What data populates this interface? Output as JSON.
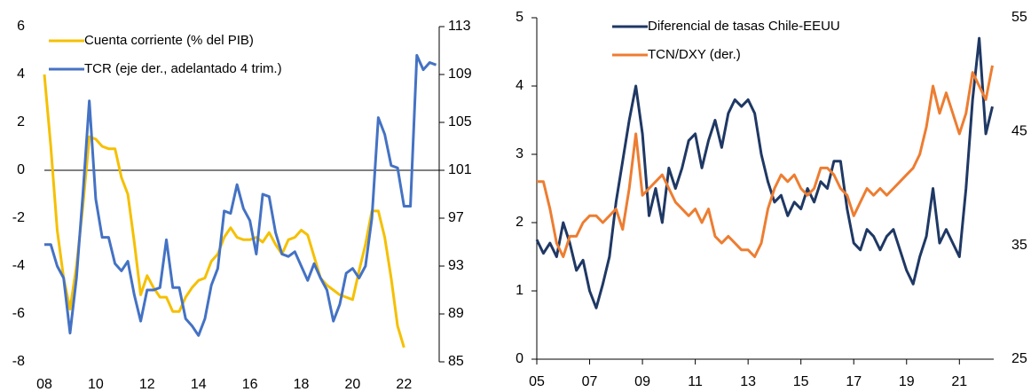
{
  "chart_data": [
    {
      "type": "line",
      "xlim": [
        8,
        23.37
      ],
      "xticks": [
        {
          "value": 8,
          "label": "08"
        },
        {
          "value": 10,
          "label": "10"
        },
        {
          "value": 12,
          "label": "12"
        },
        {
          "value": 14,
          "label": "14"
        },
        {
          "value": 16,
          "label": "16"
        },
        {
          "value": 18,
          "label": "18"
        },
        {
          "value": 20,
          "label": "20"
        },
        {
          "value": 22,
          "label": "22"
        }
      ],
      "ylim": [
        -8,
        6
      ],
      "yticks": [
        -8,
        -6,
        -4,
        -2,
        0,
        2,
        4,
        6
      ],
      "y2lim": [
        85,
        113
      ],
      "y2ticks": [
        85,
        89,
        93,
        97,
        101,
        105,
        109,
        113
      ],
      "series": [
        {
          "name": "Cuenta corriente (% del PIB)",
          "color": "#f5c000",
          "axis": "y",
          "x": [
            8,
            8.25,
            8.5,
            8.75,
            9,
            9.25,
            9.5,
            9.75,
            10,
            10.25,
            10.5,
            10.75,
            11,
            11.25,
            11.5,
            11.75,
            12,
            12.25,
            12.5,
            12.75,
            13,
            13.25,
            13.5,
            13.75,
            14,
            14.25,
            14.5,
            14.75,
            15,
            15.25,
            15.5,
            15.75,
            16,
            16.25,
            16.5,
            16.75,
            17,
            17.25,
            17.5,
            17.75,
            18,
            18.25,
            18.5,
            18.75,
            19,
            19.25,
            19.5,
            19.75,
            20,
            20.25,
            20.5,
            20.75,
            21,
            21.25,
            21.5,
            21.75,
            22
          ],
          "values": [
            4,
            1,
            -2.5,
            -4.5,
            -5.8,
            -4,
            -1.5,
            1.4,
            1.3,
            1.0,
            0.9,
            0.9,
            -0.3,
            -1,
            -3,
            -5.2,
            -4.4,
            -4.9,
            -5.3,
            -5.3,
            -5.9,
            -5.9,
            -5.3,
            -4.9,
            -4.6,
            -4.5,
            -3.8,
            -3.5,
            -2.8,
            -2.4,
            -2.8,
            -2.9,
            -2.9,
            -2.8,
            -3,
            -2.6,
            -3.1,
            -3.5,
            -2.9,
            -2.8,
            -2.5,
            -2.7,
            -3.6,
            -4.5,
            -4.8,
            -5.0,
            -5.2,
            -5.3,
            -5.4,
            -4.2,
            -3.1,
            -1.7,
            -1.7,
            -2.8,
            -4.5,
            -6.5,
            -7.4
          ]
        },
        {
          "name": "TCR (eje der., adelantado 4 trim.)",
          "color": "#4472c4",
          "axis": "y2",
          "x": [
            8,
            8.25,
            8.5,
            8.75,
            9,
            9.25,
            9.5,
            9.75,
            10,
            10.25,
            10.5,
            10.75,
            11,
            11.25,
            11.5,
            11.75,
            12,
            12.25,
            12.5,
            12.75,
            13,
            13.25,
            13.5,
            13.75,
            14,
            14.25,
            14.5,
            14.75,
            15,
            15.25,
            15.5,
            15.75,
            16,
            16.25,
            16.5,
            16.75,
            17,
            17.25,
            17.5,
            17.75,
            18,
            18.25,
            18.5,
            18.75,
            19,
            19.25,
            19.5,
            19.75,
            20,
            20.25,
            20.5,
            20.75,
            21,
            21.25,
            21.5,
            21.75,
            22,
            22.25,
            22.5,
            22.75,
            23,
            23.25
          ],
          "values": [
            94.8,
            94.8,
            93,
            92,
            87.4,
            92,
            99,
            106.8,
            98.6,
            95.4,
            95.4,
            93.2,
            92.6,
            93.4,
            90.6,
            88.4,
            91,
            91,
            91.2,
            95.2,
            91.2,
            91.2,
            88.6,
            88,
            87.2,
            88.6,
            91.4,
            92.8,
            97.6,
            97.4,
            99.8,
            97.8,
            96.8,
            94,
            99,
            98.8,
            95.8,
            94,
            93.8,
            94.2,
            93,
            91.8,
            93.2,
            92,
            91,
            88.4,
            89.8,
            92.4,
            92.8,
            92,
            93,
            97,
            105.4,
            104,
            101.4,
            101.2,
            98,
            98,
            110.6,
            109.4,
            110,
            109.8
          ]
        }
      ]
    },
    {
      "type": "line",
      "xlim": [
        5,
        22.3
      ],
      "xticks": [
        {
          "value": 5,
          "label": "05"
        },
        {
          "value": 7,
          "label": "07"
        },
        {
          "value": 9,
          "label": "09"
        },
        11,
        13,
        15,
        17,
        19,
        21
      ],
      "ylim": [
        0,
        5
      ],
      "yticks": [
        0,
        1,
        2,
        3,
        4,
        5
      ],
      "y2lim": [
        25,
        55
      ],
      "y2ticks": [
        25,
        35,
        45,
        55
      ],
      "series": [
        {
          "name": "Diferencial de tasas Chile-EEUU",
          "color": "#1f3864",
          "axis": "y",
          "x": [
            5,
            5.25,
            5.5,
            5.75,
            6,
            6.25,
            6.5,
            6.75,
            7,
            7.25,
            7.5,
            7.75,
            8,
            8.25,
            8.5,
            8.75,
            9,
            9.25,
            9.5,
            9.75,
            10,
            10.25,
            10.5,
            10.75,
            11,
            11.25,
            11.5,
            11.75,
            12,
            12.25,
            12.5,
            12.75,
            13,
            13.25,
            13.5,
            13.75,
            14,
            14.25,
            14.5,
            14.75,
            15,
            15.25,
            15.5,
            15.75,
            16,
            16.25,
            16.5,
            16.75,
            17,
            17.25,
            17.5,
            17.75,
            18,
            18.25,
            18.5,
            18.75,
            19,
            19.25,
            19.5,
            19.75,
            20,
            20.25,
            20.5,
            20.75,
            21,
            21.25,
            21.5,
            21.75,
            22,
            22.25
          ],
          "values": [
            1.75,
            1.55,
            1.7,
            1.5,
            2.0,
            1.7,
            1.3,
            1.45,
            1.0,
            0.75,
            1.1,
            1.5,
            2.3,
            2.9,
            3.5,
            4.0,
            3.3,
            2.1,
            2.5,
            2.0,
            2.8,
            2.5,
            2.8,
            3.2,
            3.3,
            2.8,
            3.2,
            3.5,
            3.1,
            3.6,
            3.8,
            3.7,
            3.8,
            3.6,
            3.0,
            2.6,
            2.3,
            2.4,
            2.1,
            2.3,
            2.2,
            2.5,
            2.3,
            2.6,
            2.5,
            2.9,
            2.9,
            2.2,
            1.7,
            1.6,
            1.9,
            1.8,
            1.6,
            1.8,
            1.9,
            1.6,
            1.3,
            1.1,
            1.5,
            1.8,
            2.5,
            1.7,
            1.9,
            1.7,
            1.5,
            2.5,
            3.8,
            4.7,
            3.3,
            3.7
          ]
        },
        {
          "name": "TCN/DXY (der.)",
          "color": "#ed7d31",
          "axis": "y2",
          "x": [
            5,
            5.25,
            5.5,
            5.75,
            6,
            6.25,
            6.5,
            6.75,
            7,
            7.25,
            7.5,
            7.75,
            8,
            8.25,
            8.5,
            8.75,
            9,
            9.25,
            9.5,
            9.75,
            10,
            10.25,
            10.5,
            10.75,
            11,
            11.25,
            11.5,
            11.75,
            12,
            12.25,
            12.5,
            12.75,
            13,
            13.25,
            13.5,
            13.75,
            14,
            14.25,
            14.5,
            14.75,
            15,
            15.25,
            15.5,
            15.75,
            16,
            16.25,
            16.5,
            16.75,
            17,
            17.25,
            17.5,
            17.75,
            18,
            18.25,
            18.5,
            18.75,
            19,
            19.25,
            19.5,
            19.75,
            20,
            20.25,
            20.5,
            20.75,
            21,
            21.25,
            21.5,
            21.75,
            22,
            22.25
          ],
          "values": [
            40.6,
            40.6,
            38.2,
            35.2,
            34,
            35.8,
            35.8,
            37,
            37.6,
            37.6,
            37,
            37.6,
            38.2,
            36.4,
            40,
            44.8,
            39.4,
            40,
            40.6,
            41.2,
            40,
            38.8,
            38.2,
            37.6,
            38.2,
            37,
            38.2,
            35.8,
            35.2,
            35.8,
            35.2,
            34.6,
            34.6,
            34,
            35.2,
            38.2,
            40,
            41.2,
            40.6,
            41.2,
            40,
            39.4,
            40,
            41.8,
            41.8,
            41.2,
            40,
            39.4,
            37.6,
            38.8,
            40,
            39.4,
            40,
            39.4,
            40,
            40.6,
            41.2,
            41.8,
            43,
            45.4,
            49,
            46.6,
            48.4,
            46.6,
            44.8,
            46.6,
            50.2,
            49,
            47.8,
            50.8
          ]
        }
      ]
    }
  ]
}
